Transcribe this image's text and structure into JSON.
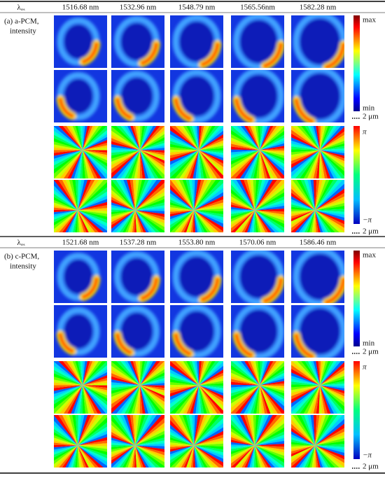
{
  "sections": [
    {
      "lambda_symbol": "λ",
      "lambda_sub": "res",
      "wavelengths": [
        "1516.68 nm",
        "1532.96 nm",
        "1548.79 nm",
        "1565.56nm",
        "1582.28 nm"
      ],
      "label": [
        "(a) a-PCM,",
        "intensity"
      ],
      "intensity_max": "max",
      "intensity_min": "min",
      "intensity_scalebar": "2 μm",
      "phase_max": "π",
      "phase_min": "−π",
      "phase_scalebar": "2 μm"
    },
    {
      "lambda_symbol": "λ",
      "lambda_sub": "res",
      "wavelengths": [
        "1521.68 nm",
        "1537.28 nm",
        "1553.80 nm",
        "1570.06 nm",
        "1586.46 nm"
      ],
      "label": [
        "(b) c-PCM,",
        "intensity"
      ],
      "intensity_max": "max",
      "intensity_min": "min",
      "intensity_scalebar": "2 μm",
      "phase_max": "π",
      "phase_min": "−π",
      "phase_scalebar": "2 μm"
    }
  ]
}
